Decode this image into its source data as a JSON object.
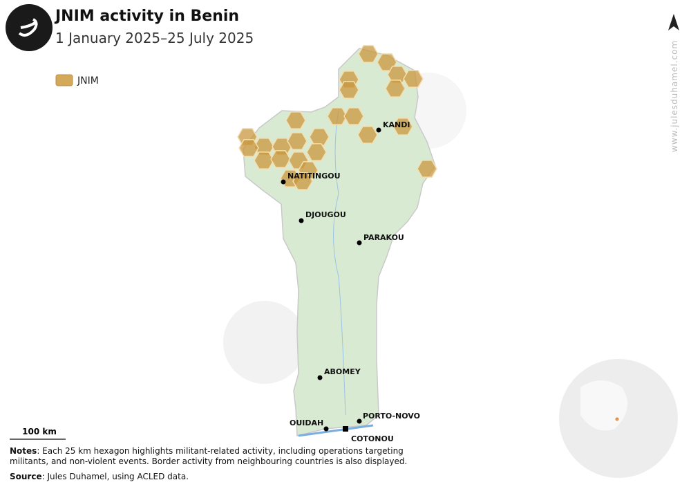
{
  "header": {
    "title": "JNIM activity in Benin",
    "subtitle": "1 January 2025–25 July 2025"
  },
  "legend": {
    "label": "JNIM"
  },
  "cities": [
    "KANDI",
    "NATITINGOU",
    "DJOUGOU",
    "PARAKOU",
    "ABOMEY",
    "PORTO-NOVO",
    "OUIDAH",
    "COTONOU"
  ],
  "scale": "100 km",
  "notes": {
    "label": "Notes",
    "text": ": Each 25 km hexagon highlights militant-related activity, including operations targeting militants, and non-violent events. Border activity from neighbouring countries is also displayed."
  },
  "source": {
    "label": "Source",
    "text": ": Jules Duhamel, using ACLED data."
  },
  "watermark": "www.julesduhamel.com"
}
